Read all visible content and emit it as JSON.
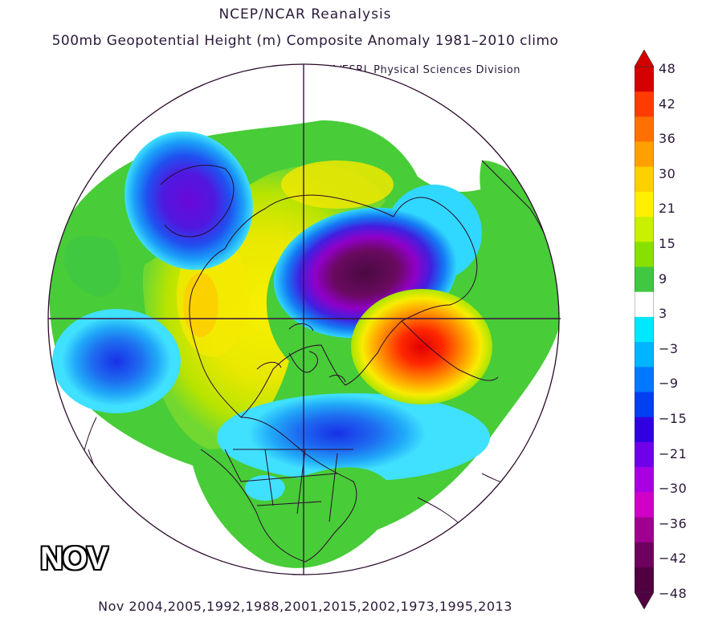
{
  "header": {
    "title_line1": "NCEP/NCAR Reanalysis",
    "title_line2": "500mb Geopotential Height (m) Composite Anomaly 1981–2010 climo",
    "credit": "NOAA/ESRL Physical Sciences Division"
  },
  "map": {
    "projection": "north-polar-stereographic",
    "month_label": "NOV",
    "years_caption": "Nov 2004,2005,1992,1988,2001,2015,2002,1973,1995,2013"
  },
  "colorbar": {
    "tick_labels": [
      "48",
      "42",
      "36",
      "30",
      "21",
      "15",
      "9",
      "3",
      "−3",
      "−9",
      "−15",
      "−21",
      "−30",
      "−36",
      "−42",
      "−48"
    ],
    "colors": [
      "#d40000",
      "#ff3c00",
      "#ff7000",
      "#ffa000",
      "#ffd000",
      "#fff000",
      "#c8f000",
      "#88e000",
      "#40c840",
      "#ffffff",
      "#00e8ff",
      "#00b4ff",
      "#0078ff",
      "#0040f0",
      "#3000e0",
      "#7000e8",
      "#a800e0",
      "#d000c8",
      "#a00090",
      "#700060",
      "#500040"
    ]
  }
}
